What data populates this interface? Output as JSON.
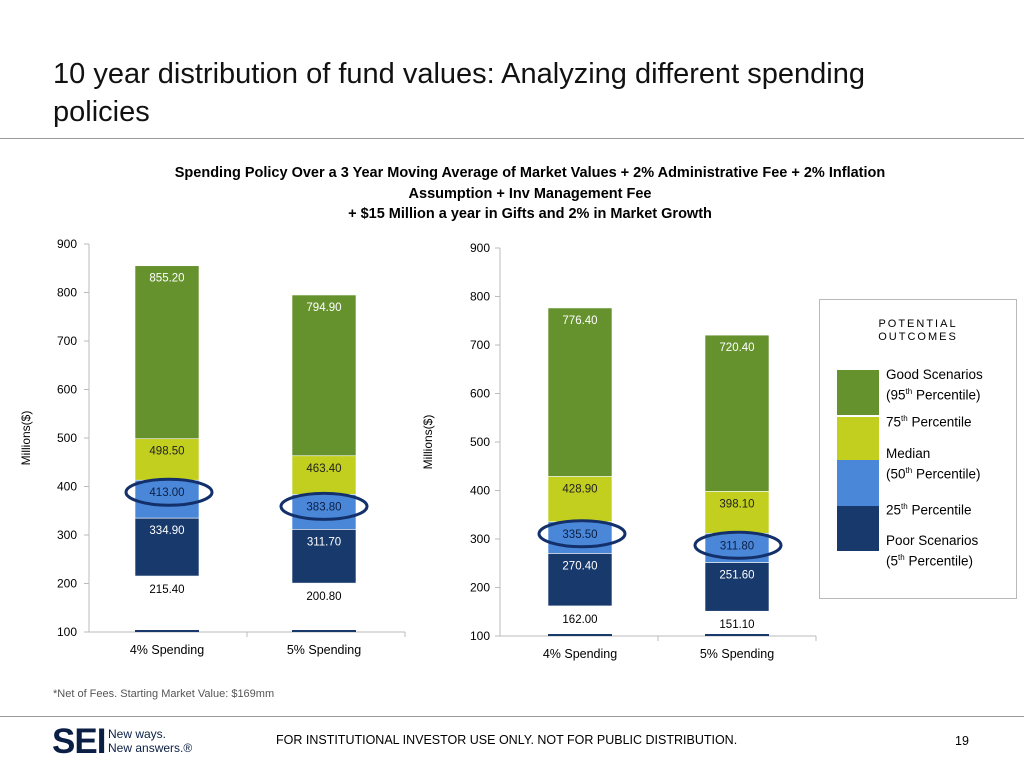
{
  "title": "10 year distribution of fund values: Analyzing different spending policies",
  "subtitle": {
    "line1": "Spending Policy Over a 3 Year Moving Average of Market Values + 2% Administrative Fee + 2% Inflation",
    "line2": "Assumption + Inv Management Fee",
    "line3": "+ $15 Million a year in Gifts and 2% in Market Growth"
  },
  "legend": {
    "heading_line1": "POTENTIAL",
    "heading_line2": "OUTCOMES",
    "good": "Good Scenarios",
    "good_pct_prefix": "(95",
    "p75_prefix": "75",
    "median": "Median",
    "median_pct_prefix": "(50",
    "p25_prefix": "25",
    "poor": "Poor Scenarios",
    "poor_pct_prefix": "(5",
    "th": "th",
    "percentile_suffix": " Percentile)",
    "percentile_word": " Percentile"
  },
  "footnote": "*Net of Fees. Starting Market Value: $169mm",
  "footer": {
    "logo": "SEI",
    "tagline_line1": "New ways.",
    "tagline_line2": "New answers.®",
    "disclaimer": "FOR INSTITUTIONAL INVESTOR USE ONLY. NOT FOR PUBLIC DISTRIBUTION.",
    "page": "19"
  },
  "colors": {
    "good": "#66922e",
    "p75": "#c2cf1e",
    "median": "#4a87d8",
    "p25": "#17396b",
    "circle": "#13306a",
    "axis": "#bbbbbb"
  },
  "chart_data": [
    {
      "type": "bar",
      "stacked": true,
      "ylabel": "Millions($)",
      "ylim": [
        100,
        900
      ],
      "yticks": [
        100,
        200,
        300,
        400,
        500,
        600,
        700,
        800,
        900
      ],
      "categories": [
        "4% Spending",
        "5% Spending"
      ],
      "percentiles": {
        "p5": [
          215.4,
          200.8
        ],
        "p25": [
          334.9,
          311.7
        ],
        "p50": [
          413.0,
          383.8
        ],
        "p75": [
          498.5,
          463.4
        ],
        "p95": [
          855.2,
          794.9
        ]
      },
      "labels": {
        "p5": [
          "215.40",
          "200.80"
        ],
        "p25": [
          "334.90",
          "311.70"
        ],
        "p50": [
          "413.00",
          "383.80"
        ],
        "p75": [
          "498.50",
          "463.40"
        ],
        "p95": [
          "855.20",
          "794.90"
        ]
      },
      "highlighted": "p50"
    },
    {
      "type": "bar",
      "stacked": true,
      "ylabel": "Millions($)",
      "ylim": [
        100,
        900
      ],
      "yticks": [
        100,
        200,
        300,
        400,
        500,
        600,
        700,
        800,
        900
      ],
      "categories": [
        "4% Spending",
        "5% Spending"
      ],
      "percentiles": {
        "p5": [
          162.0,
          151.1
        ],
        "p25": [
          270.4,
          251.6
        ],
        "p50": [
          335.5,
          311.8
        ],
        "p75": [
          428.9,
          398.1
        ],
        "p95": [
          776.4,
          720.4
        ]
      },
      "labels": {
        "p5": [
          "162.00",
          "151.10"
        ],
        "p25": [
          "270.40",
          "251.60"
        ],
        "p50": [
          "335.50",
          "311.80"
        ],
        "p75": [
          "428.90",
          "398.10"
        ],
        "p95": [
          "776.40",
          "720.40"
        ]
      },
      "highlighted": "p50"
    }
  ]
}
